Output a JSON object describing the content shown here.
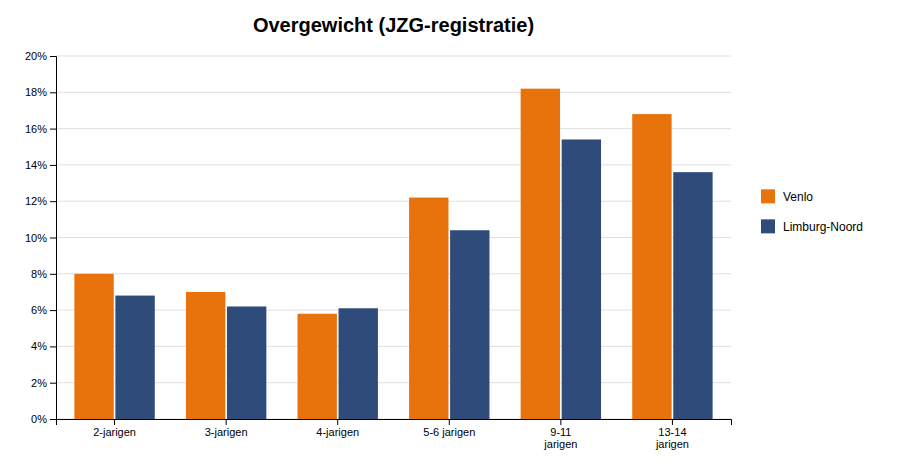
{
  "chart_data": {
    "type": "bar",
    "title": "Overgewicht (JZG-registratie)",
    "categories": [
      "2-jarigen",
      "3-jarigen",
      "4-jarigen",
      "5-6 jarigen",
      "9-11\njarigen",
      "13-14\njarigen"
    ],
    "series": [
      {
        "name": "Venlo",
        "color": "#E8720C",
        "values": [
          8.0,
          7.0,
          5.8,
          12.2,
          18.2,
          16.8
        ]
      },
      {
        "name": "Limburg-Noord",
        "color": "#2E4B7A",
        "values": [
          6.8,
          6.2,
          6.1,
          10.4,
          15.4,
          13.6
        ]
      }
    ],
    "ylim": [
      0,
      20
    ],
    "yticks": [
      {
        "value": 0,
        "label": "0%"
      },
      {
        "value": 2,
        "label": "2%"
      },
      {
        "value": 4,
        "label": "4%"
      },
      {
        "value": 6,
        "label": "6%"
      },
      {
        "value": 8,
        "label": "8%"
      },
      {
        "value": 10,
        "label": "10%"
      },
      {
        "value": 12,
        "label": "12%"
      },
      {
        "value": 14,
        "label": "14%"
      },
      {
        "value": 16,
        "label": "16%"
      },
      {
        "value": 18,
        "label": "18%"
      },
      {
        "value": 20,
        "label": "20%"
      }
    ],
    "grid": true,
    "legend": "right"
  }
}
